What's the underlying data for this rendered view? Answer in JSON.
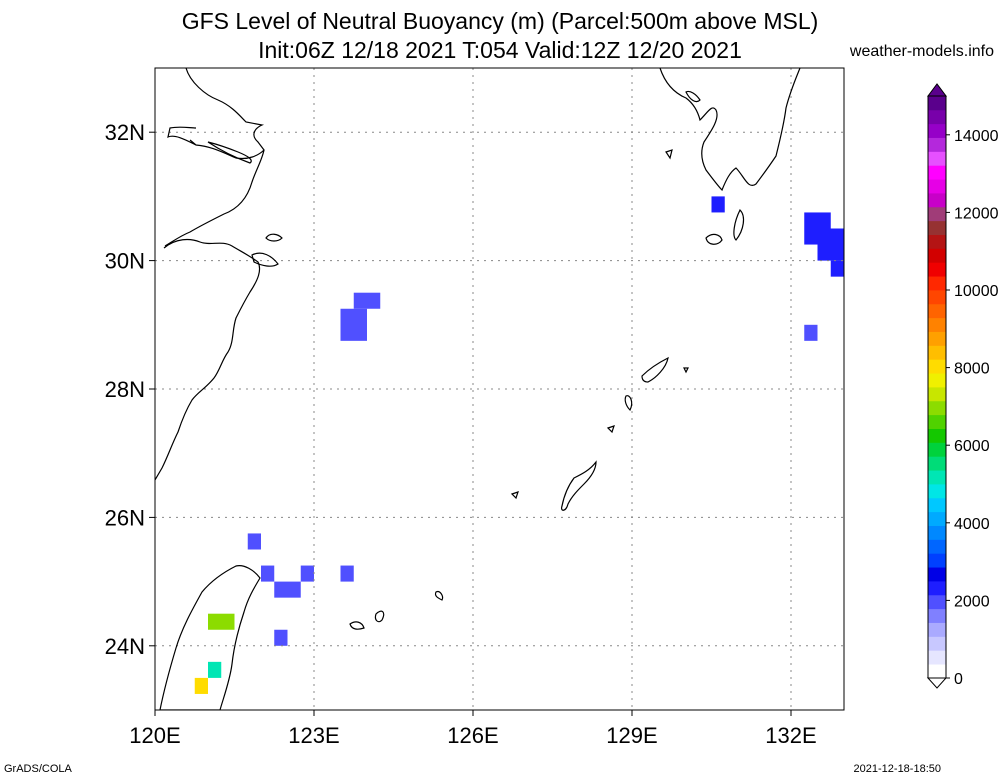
{
  "header": {
    "title_line1": "GFS Level of Neutral Buoyancy (m) (Parcel:500m above MSL)",
    "title_line2": "Init:06Z 12/18 2021 T:054 Valid:12Z 12/20 2021",
    "site": "weather-models.info"
  },
  "map": {
    "lat_labels": [
      "32N",
      "30N",
      "28N",
      "26N",
      "24N"
    ],
    "lon_labels": [
      "120E",
      "123E",
      "126E",
      "129E",
      "132E"
    ],
    "extent": {
      "lon_min": 120,
      "lon_max": 133,
      "lat_min": 23,
      "lat_max": 33
    },
    "gridlines": "dotted",
    "coastline_color": "#000000"
  },
  "colorbar": {
    "labels": [
      "0",
      "2000",
      "4000",
      "6000",
      "8000",
      "10000",
      "12000",
      "14000"
    ],
    "label_values": [
      0,
      2000,
      4000,
      6000,
      8000,
      10000,
      12000,
      14000
    ],
    "colors": [
      "#ffffff",
      "#e6e6ff",
      "#c8c8ff",
      "#aaaaff",
      "#8080ff",
      "#5050ff",
      "#1e1eff",
      "#0000e6",
      "#0040ff",
      "#0066ff",
      "#0088ff",
      "#00aaff",
      "#00c8ff",
      "#00e6e6",
      "#00e6b4",
      "#00dc78",
      "#00d23c",
      "#14c800",
      "#50d200",
      "#8cdc00",
      "#c8e600",
      "#f0f000",
      "#ffdc00",
      "#ffbe00",
      "#ffa000",
      "#ff8200",
      "#ff6400",
      "#ff4600",
      "#ff2800",
      "#f00000",
      "#d20000",
      "#b41414",
      "#963232",
      "#a03c78",
      "#c800c8",
      "#e600e6",
      "#ff00ff",
      "#e650ff",
      "#b428dc",
      "#9600c8",
      "#7800aa",
      "#5a008c"
    ]
  },
  "chart_data": {
    "type": "heatmap",
    "title": "GFS Level of Neutral Buoyancy (m) (Parcel:500m above MSL)",
    "units": "m",
    "cells": [
      {
        "lon_range": [
          123.5,
          124.0
        ],
        "lat_range": [
          28.75,
          29.25
        ],
        "value": 1800
      },
      {
        "lon_range": [
          123.75,
          124.25
        ],
        "lat_range": [
          29.25,
          29.5
        ],
        "value": 1800
      },
      {
        "lon_range": [
          121.75,
          122.0
        ],
        "lat_range": [
          25.5,
          25.75
        ],
        "value": 1800
      },
      {
        "lon_range": [
          122.0,
          122.25
        ],
        "lat_range": [
          25.0,
          25.25
        ],
        "value": 1800
      },
      {
        "lon_range": [
          122.25,
          122.75
        ],
        "lat_range": [
          24.75,
          25.0
        ],
        "value": 1800
      },
      {
        "lon_range": [
          122.75,
          123.0
        ],
        "lat_range": [
          25.0,
          25.25
        ],
        "value": 1800
      },
      {
        "lon_range": [
          123.5,
          123.75
        ],
        "lat_range": [
          25.0,
          25.25
        ],
        "value": 1800
      },
      {
        "lon_range": [
          122.25,
          122.5
        ],
        "lat_range": [
          24.0,
          24.25
        ],
        "value": 1800
      },
      {
        "lon_range": [
          130.5,
          130.75
        ],
        "lat_range": [
          30.75,
          31.0
        ],
        "value": 2400
      },
      {
        "lon_range": [
          132.25,
          132.75
        ],
        "lat_range": [
          30.25,
          30.75
        ],
        "value": 2400
      },
      {
        "lon_range": [
          132.5,
          133.0
        ],
        "lat_range": [
          30.0,
          30.5
        ],
        "value": 2400
      },
      {
        "lon_range": [
          132.75,
          133.0
        ],
        "lat_range": [
          29.75,
          30.0
        ],
        "value": 2400
      },
      {
        "lon_range": [
          132.25,
          132.5
        ],
        "lat_range": [
          28.75,
          29.0
        ],
        "value": 1800
      },
      {
        "lon_range": [
          121.0,
          121.5
        ],
        "lat_range": [
          24.25,
          24.5
        ],
        "value": 7000
      },
      {
        "lon_range": [
          121.0,
          121.25
        ],
        "lat_range": [
          23.5,
          23.75
        ],
        "value": 5000
      },
      {
        "lon_range": [
          120.75,
          121.0
        ],
        "lat_range": [
          23.25,
          23.5
        ],
        "value": 8000
      }
    ]
  },
  "footer": {
    "left": "GrADS/COLA",
    "right": "2021-12-18-18:50"
  }
}
